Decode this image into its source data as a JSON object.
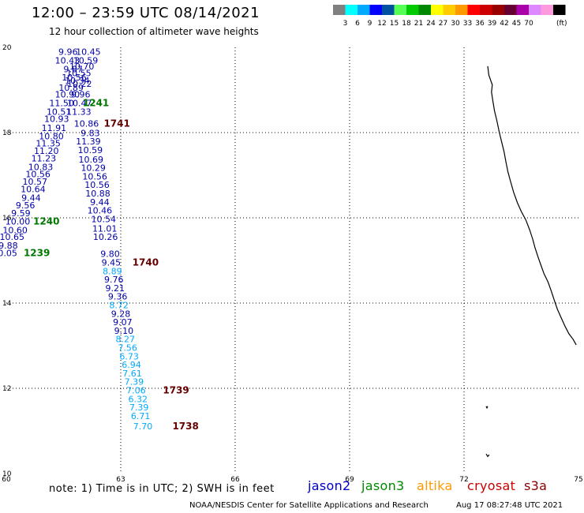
{
  "header": {
    "title": "12:00 – 23:59 UTC 08/14/2021",
    "subtitle": "12 hour collection of altimeter wave heights"
  },
  "colorbar": {
    "unit": "(ft)",
    "colors": [
      "#808080",
      "#00ffff",
      "#00aaff",
      "#0000ff",
      "#0050a0",
      "#55ff55",
      "#00cc00",
      "#008800",
      "#ffff00",
      "#ffcc00",
      "#ff9900",
      "#ff0000",
      "#cc0000",
      "#990000",
      "#660033",
      "#aa00aa",
      "#dd88ff",
      "#ff99dd",
      "#000000"
    ],
    "labels": [
      "3",
      "6",
      "9",
      "12",
      "15",
      "18",
      "21",
      "24",
      "27",
      "30",
      "33",
      "36",
      "39",
      "42",
      "45",
      "70"
    ]
  },
  "chart_data": {
    "type": "scatter",
    "xlim": [
      60,
      75
    ],
    "ylim": [
      10,
      20
    ],
    "x_ticks": [
      "60",
      "63",
      "66",
      "69",
      "72",
      "75"
    ],
    "y_ticks": [
      "20",
      "18",
      "16",
      "14",
      "12",
      "10"
    ],
    "points": [
      {
        "label": "9.96",
        "x": 61.62,
        "y": 19.82,
        "c": "#0000aa"
      },
      {
        "label": "10.45",
        "x": 62.15,
        "y": 19.82,
        "c": "#0000aa"
      },
      {
        "label": "10.43",
        "x": 61.6,
        "y": 19.62,
        "c": "#0000aa"
      },
      {
        "label": "10.59",
        "x": 62.08,
        "y": 19.62,
        "c": "#0000aa"
      },
      {
        "label": "10.70",
        "x": 61.98,
        "y": 19.48,
        "c": "#0000aa"
      },
      {
        "label": "9.87",
        "x": 61.75,
        "y": 19.42,
        "c": "#0000aa"
      },
      {
        "label": "10.55",
        "x": 61.9,
        "y": 19.32,
        "c": "#0000aa"
      },
      {
        "label": "10.56",
        "x": 61.78,
        "y": 19.22,
        "c": "#0000aa"
      },
      {
        "label": "10.34",
        "x": 61.86,
        "y": 19.15,
        "c": "#0000aa"
      },
      {
        "label": "10.22",
        "x": 61.92,
        "y": 19.07,
        "c": "#0000aa"
      },
      {
        "label": "10.89",
        "x": 61.7,
        "y": 18.98,
        "c": "#0000aa"
      },
      {
        "label": "10.90",
        "x": 61.6,
        "y": 18.82,
        "c": "#0000aa"
      },
      {
        "label": "9.96",
        "x": 61.95,
        "y": 18.82,
        "c": "#0000aa"
      },
      {
        "label": "11.50",
        "x": 61.45,
        "y": 18.62,
        "c": "#0000aa"
      },
      {
        "label": "10.47",
        "x": 61.92,
        "y": 18.62,
        "c": "#0000aa"
      },
      {
        "label": "10.51",
        "x": 61.38,
        "y": 18.42,
        "c": "#0000aa"
      },
      {
        "label": "11.33",
        "x": 61.9,
        "y": 18.42,
        "c": "#0000aa"
      },
      {
        "label": "10.93",
        "x": 61.32,
        "y": 18.25,
        "c": "#0000aa"
      },
      {
        "label": "10.86",
        "x": 62.1,
        "y": 18.14,
        "c": "#0000aa"
      },
      {
        "label": "11.91",
        "x": 61.25,
        "y": 18.04,
        "c": "#0000aa"
      },
      {
        "label": "9.83",
        "x": 62.2,
        "y": 17.92,
        "c": "#0000aa"
      },
      {
        "label": "10.80",
        "x": 61.18,
        "y": 17.84,
        "c": "#0000aa"
      },
      {
        "label": "11.39",
        "x": 62.15,
        "y": 17.72,
        "c": "#0000aa"
      },
      {
        "label": "11.35",
        "x": 61.1,
        "y": 17.68,
        "c": "#0000aa"
      },
      {
        "label": "10.59",
        "x": 62.2,
        "y": 17.52,
        "c": "#0000aa"
      },
      {
        "label": "11.20",
        "x": 61.05,
        "y": 17.5,
        "c": "#0000aa"
      },
      {
        "label": "10.69",
        "x": 62.22,
        "y": 17.3,
        "c": "#0000aa"
      },
      {
        "label": "11.23",
        "x": 60.98,
        "y": 17.32,
        "c": "#0000aa"
      },
      {
        "label": "10.83",
        "x": 60.9,
        "y": 17.12,
        "c": "#0000aa"
      },
      {
        "label": "10.29",
        "x": 62.28,
        "y": 17.1,
        "c": "#0000aa"
      },
      {
        "label": "10.56",
        "x": 60.83,
        "y": 16.95,
        "c": "#0000aa"
      },
      {
        "label": "10.56",
        "x": 62.32,
        "y": 16.9,
        "c": "#0000aa"
      },
      {
        "label": "10.57",
        "x": 60.75,
        "y": 16.78,
        "c": "#0000aa"
      },
      {
        "label": "10.56",
        "x": 62.38,
        "y": 16.7,
        "c": "#0000aa"
      },
      {
        "label": "10.64",
        "x": 60.7,
        "y": 16.6,
        "c": "#0000aa"
      },
      {
        "label": "10.88",
        "x": 62.4,
        "y": 16.5,
        "c": "#0000aa"
      },
      {
        "label": "9.44",
        "x": 60.65,
        "y": 16.4,
        "c": "#0000aa"
      },
      {
        "label": "9.44",
        "x": 62.45,
        "y": 16.3,
        "c": "#0000aa"
      },
      {
        "label": "9.56",
        "x": 60.5,
        "y": 16.22,
        "c": "#0000aa"
      },
      {
        "label": "10.46",
        "x": 62.45,
        "y": 16.1,
        "c": "#0000aa"
      },
      {
        "label": "9.59",
        "x": 60.38,
        "y": 16.04,
        "c": "#0000aa"
      },
      {
        "label": "10.00",
        "x": 60.3,
        "y": 15.84,
        "c": "#0000aa"
      },
      {
        "label": "10.54",
        "x": 62.55,
        "y": 15.9,
        "c": "#0000aa"
      },
      {
        "label": "10.60",
        "x": 60.23,
        "y": 15.64,
        "c": "#0000aa"
      },
      {
        "label": "11.01",
        "x": 62.58,
        "y": 15.68,
        "c": "#0000aa"
      },
      {
        "label": "10.65",
        "x": 60.15,
        "y": 15.48,
        "c": "#0000aa"
      },
      {
        "label": "10.26",
        "x": 62.6,
        "y": 15.48,
        "c": "#0000aa"
      },
      {
        "label": "9.88",
        "x": 60.05,
        "y": 15.28,
        "c": "#0000aa"
      },
      {
        "label": "10.05",
        "x": 59.96,
        "y": 15.1,
        "c": "#0000aa"
      },
      {
        "label": "9.80",
        "x": 62.72,
        "y": 15.08,
        "c": "#0000aa"
      },
      {
        "label": "9.45",
        "x": 62.75,
        "y": 14.88,
        "c": "#0000aa"
      },
      {
        "label": "8.89",
        "x": 62.78,
        "y": 14.68,
        "c": "#00aaff"
      },
      {
        "label": "9.76",
        "x": 62.82,
        "y": 14.48,
        "c": "#0000aa"
      },
      {
        "label": "9.21",
        "x": 62.85,
        "y": 14.28,
        "c": "#0000aa"
      },
      {
        "label": "9.36",
        "x": 62.92,
        "y": 14.08,
        "c": "#0000aa"
      },
      {
        "label": "8.72",
        "x": 62.95,
        "y": 13.88,
        "c": "#00aaff"
      },
      {
        "label": "9.28",
        "x": 63.0,
        "y": 13.68,
        "c": "#0000aa"
      },
      {
        "label": "9.07",
        "x": 63.05,
        "y": 13.48,
        "c": "#0000aa"
      },
      {
        "label": "9.10",
        "x": 63.08,
        "y": 13.28,
        "c": "#0000aa"
      },
      {
        "label": "8.27",
        "x": 63.12,
        "y": 13.08,
        "c": "#00aaff"
      },
      {
        "label": "7.56",
        "x": 63.18,
        "y": 12.88,
        "c": "#00aaff"
      },
      {
        "label": "6.73",
        "x": 63.22,
        "y": 12.68,
        "c": "#00aaff"
      },
      {
        "label": "6.94",
        "x": 63.28,
        "y": 12.48,
        "c": "#00aaff"
      },
      {
        "label": "7.61",
        "x": 63.3,
        "y": 12.28,
        "c": "#00aaff"
      },
      {
        "label": "7.39",
        "x": 63.35,
        "y": 12.08,
        "c": "#00aaff"
      },
      {
        "label": "7.06",
        "x": 63.4,
        "y": 11.88,
        "c": "#00aaff"
      },
      {
        "label": "6.32",
        "x": 63.45,
        "y": 11.68,
        "c": "#00aaff"
      },
      {
        "label": "7.39",
        "x": 63.48,
        "y": 11.48,
        "c": "#00aaff"
      },
      {
        "label": "6.71",
        "x": 63.52,
        "y": 11.28,
        "c": "#00aaff"
      },
      {
        "label": "7.70",
        "x": 63.58,
        "y": 11.04,
        "c": "#00aaff"
      }
    ],
    "time_labels": [
      {
        "label": "1241",
        "x": 62.35,
        "y": 18.62,
        "c": "#007700"
      },
      {
        "label": "1741",
        "x": 62.9,
        "y": 18.14,
        "c": "#660000"
      },
      {
        "label": "1240",
        "x": 61.05,
        "y": 15.84,
        "c": "#007700"
      },
      {
        "label": "1239",
        "x": 60.8,
        "y": 15.1,
        "c": "#007700"
      },
      {
        "label": "1740",
        "x": 63.65,
        "y": 14.88,
        "c": "#660000"
      },
      {
        "label": "1739",
        "x": 64.45,
        "y": 11.88,
        "c": "#660000"
      },
      {
        "label": "1738",
        "x": 64.7,
        "y": 11.04,
        "c": "#660000"
      }
    ]
  },
  "coast": {
    "lines": [
      [
        [
          72.62,
          19.56
        ],
        [
          72.65,
          19.35
        ],
        [
          72.74,
          19.12
        ],
        [
          72.72,
          18.95
        ],
        [
          72.76,
          18.72
        ],
        [
          72.8,
          18.5
        ],
        [
          72.86,
          18.28
        ],
        [
          72.92,
          18.02
        ],
        [
          72.98,
          17.8
        ],
        [
          73.05,
          17.55
        ],
        [
          73.1,
          17.3
        ],
        [
          73.15,
          17.08
        ],
        [
          73.22,
          16.85
        ],
        [
          73.3,
          16.6
        ],
        [
          73.4,
          16.35
        ],
        [
          73.5,
          16.15
        ],
        [
          73.62,
          15.95
        ],
        [
          73.72,
          15.72
        ],
        [
          73.8,
          15.5
        ],
        [
          73.86,
          15.3
        ],
        [
          73.94,
          15.08
        ],
        [
          74.02,
          14.88
        ],
        [
          74.1,
          14.68
        ],
        [
          74.2,
          14.5
        ],
        [
          74.28,
          14.3
        ],
        [
          74.36,
          14.08
        ],
        [
          74.45,
          13.85
        ],
        [
          74.55,
          13.65
        ],
        [
          74.65,
          13.45
        ],
        [
          74.75,
          13.28
        ],
        [
          74.86,
          13.15
        ],
        [
          74.94,
          13.02
        ]
      ],
      [
        [
          72.58,
          11.58
        ],
        [
          72.6,
          11.54
        ],
        [
          72.62,
          11.58
        ]
      ],
      [
        [
          72.58,
          10.46
        ],
        [
          72.62,
          10.4
        ],
        [
          72.66,
          10.44
        ]
      ]
    ]
  },
  "footer": {
    "note": "note: 1) Time is in UTC; 2) SWH is in feet",
    "satellites": [
      {
        "name": "jason2",
        "color": "#0000cc"
      },
      {
        "name": "jason3",
        "color": "#008800"
      },
      {
        "name": "altika",
        "color": "#ff9900"
      },
      {
        "name": "cryosat",
        "color": "#cc0000"
      },
      {
        "name": "s3a",
        "color": "#880000"
      }
    ],
    "credit": "NOAA/NESDIS Center for Satellite Applications and Research",
    "timestamp": "Aug 17 08:27:48 UTC 2021"
  }
}
